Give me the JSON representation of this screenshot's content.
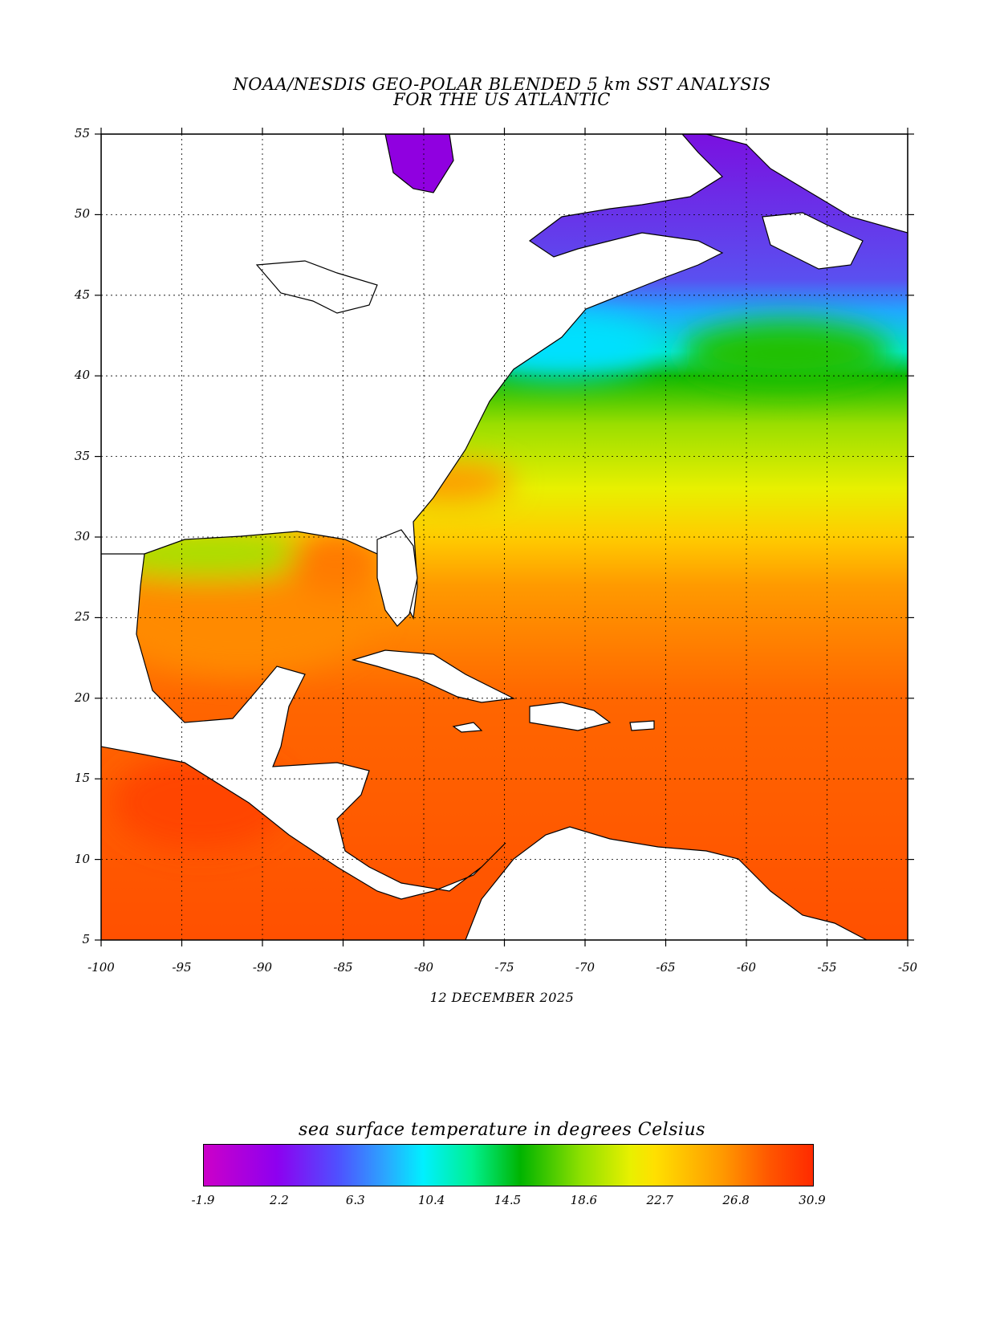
{
  "title": {
    "line1": "NOAA/NESDIS GEO-POLAR BLENDED 5 km SST ANALYSIS",
    "line2": "FOR THE US ATLANTIC"
  },
  "date": "12 DECEMBER 2025",
  "axes": {
    "lon_ticks": [
      "-100",
      "-95",
      "-90",
      "-85",
      "-80",
      "-75",
      "-70",
      "-65",
      "-60",
      "-55",
      "-50"
    ],
    "lat_ticks": [
      "55",
      "50",
      "45",
      "40",
      "35",
      "30",
      "25",
      "20",
      "15",
      "10",
      "5"
    ],
    "lon_range": [
      -100,
      -50
    ],
    "lat_range": [
      5,
      55
    ],
    "grid": "dotted"
  },
  "colorbar": {
    "title": "sea surface temperature in degrees Celsius",
    "labels": [
      "-1.9",
      "2.2",
      "6.3",
      "10.4",
      "14.5",
      "18.6",
      "22.7",
      "26.8",
      "30.9"
    ],
    "range": [
      -1.9,
      30.9
    ]
  },
  "colors": {
    "land": "#ffffff",
    "coastline": "#000000",
    "cold": "#8e00f0",
    "warm": "#ff5500"
  }
}
